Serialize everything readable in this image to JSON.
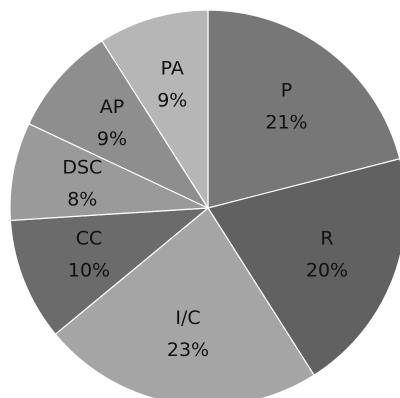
{
  "chart_data": {
    "type": "pie",
    "title": "",
    "start_angle_deg": 0,
    "direction": "clockwise",
    "legend": "none",
    "labels_inside": true,
    "slices": [
      {
        "label": "P",
        "percent_label": "21%",
        "value": 21,
        "color": "#777777"
      },
      {
        "label": "R",
        "percent_label": "20%",
        "value": 20,
        "color": "#616161"
      },
      {
        "label": "I/C",
        "percent_label": "23%",
        "value": 23,
        "color": "#a5a5a5"
      },
      {
        "label": "CC",
        "percent_label": "10%",
        "value": 10,
        "color": "#6b6b6b"
      },
      {
        "label": "DSC",
        "percent_label": "8%",
        "value": 8,
        "color": "#9a9a9a"
      },
      {
        "label": "AP",
        "percent_label": "9%",
        "value": 9,
        "color": "#8e8e8e"
      },
      {
        "label": "PA",
        "percent_label": "9%",
        "value": 9,
        "color": "#b6b6b6"
      }
    ]
  }
}
